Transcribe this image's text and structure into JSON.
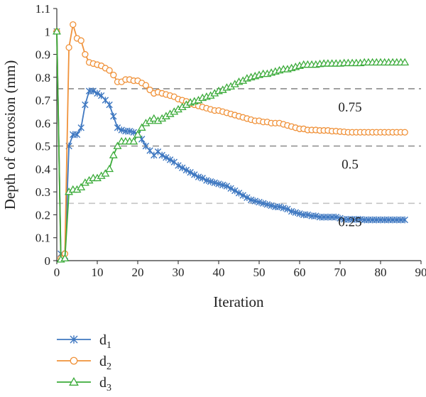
{
  "chart_data": {
    "type": "line",
    "xlabel": "Iteration",
    "ylabel": "Depth of corrosion (mm)",
    "xlim": [
      0,
      90
    ],
    "ylim": [
      0,
      1.1
    ],
    "x_ticks": [
      0,
      10,
      20,
      30,
      40,
      50,
      60,
      70,
      80,
      90
    ],
    "y_ticks": [
      0,
      0.1,
      0.2,
      0.3,
      0.4,
      0.5,
      0.6,
      0.7,
      0.8,
      0.9,
      1,
      1.1
    ],
    "grid": false,
    "legend_position": "bottom-left",
    "reference_lines": [
      {
        "label": "0.75",
        "value": 0.75,
        "color": "#8c8c8c"
      },
      {
        "label": "0.5",
        "value": 0.5,
        "color": "#8c8c8c"
      },
      {
        "label": "0.25",
        "value": 0.25,
        "color": "#c4c4c4"
      }
    ],
    "series": [
      {
        "name": "d",
        "subscript": "1",
        "marker": "star",
        "color": "#3f78c1",
        "points": [
          [
            0,
            1.0
          ],
          [
            1,
            0.03
          ],
          [
            2,
            0.02
          ],
          [
            3,
            0.5
          ],
          [
            4,
            0.55
          ],
          [
            5,
            0.55
          ],
          [
            6,
            0.58
          ],
          [
            7,
            0.68
          ],
          [
            8,
            0.74
          ],
          [
            9,
            0.74
          ],
          [
            10,
            0.73
          ],
          [
            11,
            0.72
          ],
          [
            12,
            0.7
          ],
          [
            13,
            0.68
          ],
          [
            14,
            0.63
          ],
          [
            15,
            0.58
          ],
          [
            16,
            0.57
          ],
          [
            17,
            0.565
          ],
          [
            18,
            0.565
          ],
          [
            19,
            0.56
          ],
          [
            20,
            0.55
          ],
          [
            21,
            0.53
          ],
          [
            22,
            0.5
          ],
          [
            23,
            0.48
          ],
          [
            24,
            0.46
          ],
          [
            25,
            0.475
          ],
          [
            26,
            0.46
          ],
          [
            27,
            0.45
          ],
          [
            28,
            0.44
          ],
          [
            29,
            0.43
          ],
          [
            30,
            0.415
          ],
          [
            31,
            0.405
          ],
          [
            32,
            0.395
          ],
          [
            33,
            0.385
          ],
          [
            34,
            0.375
          ],
          [
            35,
            0.365
          ],
          [
            36,
            0.36
          ],
          [
            37,
            0.35
          ],
          [
            38,
            0.345
          ],
          [
            39,
            0.34
          ],
          [
            40,
            0.335
          ],
          [
            41,
            0.33
          ],
          [
            42,
            0.325
          ],
          [
            43,
            0.315
          ],
          [
            44,
            0.305
          ],
          [
            45,
            0.295
          ],
          [
            46,
            0.285
          ],
          [
            47,
            0.275
          ],
          [
            48,
            0.265
          ],
          [
            49,
            0.26
          ],
          [
            50,
            0.255
          ],
          [
            51,
            0.25
          ],
          [
            52,
            0.245
          ],
          [
            53,
            0.24
          ],
          [
            54,
            0.235
          ],
          [
            55,
            0.235
          ],
          [
            56,
            0.23
          ],
          [
            57,
            0.225
          ],
          [
            58,
            0.215
          ],
          [
            59,
            0.21
          ],
          [
            60,
            0.205
          ],
          [
            61,
            0.2
          ],
          [
            62,
            0.2
          ],
          [
            63,
            0.195
          ],
          [
            64,
            0.195
          ],
          [
            65,
            0.19
          ],
          [
            66,
            0.19
          ],
          [
            67,
            0.19
          ],
          [
            68,
            0.19
          ],
          [
            69,
            0.19
          ],
          [
            70,
            0.185
          ],
          [
            71,
            0.18
          ],
          [
            72,
            0.18
          ],
          [
            73,
            0.18
          ],
          [
            74,
            0.18
          ],
          [
            75,
            0.18
          ],
          [
            76,
            0.178
          ],
          [
            77,
            0.178
          ],
          [
            78,
            0.178
          ],
          [
            79,
            0.178
          ],
          [
            80,
            0.178
          ],
          [
            81,
            0.178
          ],
          [
            82,
            0.178
          ],
          [
            83,
            0.178
          ],
          [
            84,
            0.178
          ],
          [
            85,
            0.178
          ],
          [
            86,
            0.178
          ]
        ]
      },
      {
        "name": "d",
        "subscript": "2",
        "marker": "circle",
        "color": "#f0923a",
        "points": [
          [
            0,
            1.0
          ],
          [
            1,
            0.01
          ],
          [
            2,
            0.03
          ],
          [
            3,
            0.93
          ],
          [
            4,
            1.03
          ],
          [
            5,
            0.97
          ],
          [
            6,
            0.96
          ],
          [
            7,
            0.9
          ],
          [
            8,
            0.865
          ],
          [
            9,
            0.86
          ],
          [
            10,
            0.855
          ],
          [
            11,
            0.85
          ],
          [
            12,
            0.84
          ],
          [
            13,
            0.83
          ],
          [
            14,
            0.81
          ],
          [
            15,
            0.78
          ],
          [
            16,
            0.78
          ],
          [
            17,
            0.79
          ],
          [
            18,
            0.79
          ],
          [
            19,
            0.785
          ],
          [
            20,
            0.785
          ],
          [
            21,
            0.775
          ],
          [
            22,
            0.765
          ],
          [
            23,
            0.745
          ],
          [
            24,
            0.73
          ],
          [
            25,
            0.735
          ],
          [
            26,
            0.73
          ],
          [
            27,
            0.725
          ],
          [
            28,
            0.72
          ],
          [
            29,
            0.715
          ],
          [
            30,
            0.705
          ],
          [
            31,
            0.7
          ],
          [
            32,
            0.695
          ],
          [
            33,
            0.685
          ],
          [
            34,
            0.68
          ],
          [
            35,
            0.675
          ],
          [
            36,
            0.67
          ],
          [
            37,
            0.665
          ],
          [
            38,
            0.66
          ],
          [
            39,
            0.655
          ],
          [
            40,
            0.655
          ],
          [
            41,
            0.65
          ],
          [
            42,
            0.645
          ],
          [
            43,
            0.64
          ],
          [
            44,
            0.635
          ],
          [
            45,
            0.63
          ],
          [
            46,
            0.625
          ],
          [
            47,
            0.62
          ],
          [
            48,
            0.615
          ],
          [
            49,
            0.61
          ],
          [
            50,
            0.61
          ],
          [
            51,
            0.605
          ],
          [
            52,
            0.605
          ],
          [
            53,
            0.6
          ],
          [
            54,
            0.6
          ],
          [
            55,
            0.6
          ],
          [
            56,
            0.595
          ],
          [
            57,
            0.59
          ],
          [
            58,
            0.585
          ],
          [
            59,
            0.58
          ],
          [
            60,
            0.575
          ],
          [
            61,
            0.575
          ],
          [
            62,
            0.57
          ],
          [
            63,
            0.57
          ],
          [
            64,
            0.57
          ],
          [
            65,
            0.568
          ],
          [
            66,
            0.568
          ],
          [
            67,
            0.568
          ],
          [
            68,
            0.565
          ],
          [
            69,
            0.565
          ],
          [
            70,
            0.563
          ],
          [
            71,
            0.562
          ],
          [
            72,
            0.56
          ],
          [
            73,
            0.56
          ],
          [
            74,
            0.56
          ],
          [
            75,
            0.56
          ],
          [
            76,
            0.56
          ],
          [
            77,
            0.56
          ],
          [
            78,
            0.56
          ],
          [
            79,
            0.56
          ],
          [
            80,
            0.56
          ],
          [
            81,
            0.56
          ],
          [
            82,
            0.56
          ],
          [
            83,
            0.56
          ],
          [
            84,
            0.56
          ],
          [
            85,
            0.56
          ],
          [
            86,
            0.56
          ]
        ]
      },
      {
        "name": "d",
        "subscript": "3",
        "marker": "triangle",
        "color": "#3bab3a",
        "points": [
          [
            0,
            1.0
          ],
          [
            1,
            0.005
          ],
          [
            2,
            0.01
          ],
          [
            3,
            0.3
          ],
          [
            4,
            0.31
          ],
          [
            5,
            0.31
          ],
          [
            6,
            0.32
          ],
          [
            7,
            0.34
          ],
          [
            8,
            0.35
          ],
          [
            9,
            0.36
          ],
          [
            10,
            0.36
          ],
          [
            11,
            0.37
          ],
          [
            12,
            0.38
          ],
          [
            13,
            0.4
          ],
          [
            14,
            0.46
          ],
          [
            15,
            0.5
          ],
          [
            16,
            0.52
          ],
          [
            17,
            0.52
          ],
          [
            18,
            0.52
          ],
          [
            19,
            0.52
          ],
          [
            20,
            0.55
          ],
          [
            21,
            0.58
          ],
          [
            22,
            0.6
          ],
          [
            23,
            0.61
          ],
          [
            24,
            0.62
          ],
          [
            25,
            0.61
          ],
          [
            26,
            0.62
          ],
          [
            27,
            0.63
          ],
          [
            28,
            0.64
          ],
          [
            29,
            0.65
          ],
          [
            30,
            0.66
          ],
          [
            31,
            0.67
          ],
          [
            32,
            0.68
          ],
          [
            33,
            0.69
          ],
          [
            34,
            0.695
          ],
          [
            35,
            0.7
          ],
          [
            36,
            0.71
          ],
          [
            37,
            0.715
          ],
          [
            38,
            0.72
          ],
          [
            39,
            0.73
          ],
          [
            40,
            0.74
          ],
          [
            41,
            0.745
          ],
          [
            42,
            0.755
          ],
          [
            43,
            0.76
          ],
          [
            44,
            0.77
          ],
          [
            45,
            0.78
          ],
          [
            46,
            0.785
          ],
          [
            47,
            0.795
          ],
          [
            48,
            0.8
          ],
          [
            49,
            0.805
          ],
          [
            50,
            0.81
          ],
          [
            51,
            0.815
          ],
          [
            52,
            0.815
          ],
          [
            53,
            0.82
          ],
          [
            54,
            0.825
          ],
          [
            55,
            0.83
          ],
          [
            56,
            0.835
          ],
          [
            57,
            0.835
          ],
          [
            58,
            0.84
          ],
          [
            59,
            0.845
          ],
          [
            60,
            0.85
          ],
          [
            61,
            0.855
          ],
          [
            62,
            0.855
          ],
          [
            63,
            0.855
          ],
          [
            64,
            0.855
          ],
          [
            65,
            0.858
          ],
          [
            66,
            0.86
          ],
          [
            67,
            0.86
          ],
          [
            68,
            0.86
          ],
          [
            69,
            0.86
          ],
          [
            70,
            0.86
          ],
          [
            71,
            0.862
          ],
          [
            72,
            0.862
          ],
          [
            73,
            0.862
          ],
          [
            74,
            0.862
          ],
          [
            75,
            0.862
          ],
          [
            76,
            0.865
          ],
          [
            77,
            0.865
          ],
          [
            78,
            0.865
          ],
          [
            79,
            0.865
          ],
          [
            80,
            0.865
          ],
          [
            81,
            0.865
          ],
          [
            82,
            0.865
          ],
          [
            83,
            0.865
          ],
          [
            84,
            0.865
          ],
          [
            85,
            0.865
          ],
          [
            86,
            0.865
          ]
        ]
      }
    ]
  }
}
